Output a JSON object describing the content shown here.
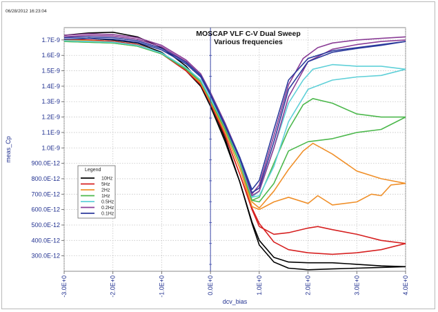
{
  "timestamp": "06/28/2012 16:23:04",
  "chart_data": {
    "type": "line",
    "title": "MOSCAP VLF C-V Dual Sweep",
    "subtitle": "Various frequencies",
    "xlabel": "dcv_bias",
    "ylabel": "meas_Cp",
    "xlim": [
      -3.0,
      4.0
    ],
    "ylim": [
      200,
      1780
    ],
    "x_ticks": [
      -3,
      -2,
      -1,
      0,
      1,
      2,
      3,
      4
    ],
    "x_tick_labels": [
      "-3.0E+0",
      "-2.0E+0",
      "-1.0E+0",
      "0.0E+0",
      "1.0E+0",
      "2.0E+0",
      "3.0E+0",
      "4.0E+0"
    ],
    "y_ticks": [
      300,
      400,
      500,
      600,
      700,
      800,
      900,
      1000,
      1100,
      1200,
      1300,
      1400,
      1500,
      1600,
      1700
    ],
    "y_tick_labels": [
      "300.0E-12",
      "400.0E-12",
      "500.0E-12",
      "600.0E-12",
      "700.0E-12",
      "800.0E-12",
      "900.0E-12",
      "1.0E-9",
      "1.1E-9",
      "1.2E-9",
      "1.3E-9",
      "1.4E-9",
      "1.5E-9",
      "1.6E-9",
      "1.7E-9"
    ],
    "grid": true,
    "legend": {
      "title": "Legend",
      "placement": "left-center"
    },
    "series": [
      {
        "name": "10Hz",
        "color": "#000000",
        "segments": [
          {
            "x": [
              -3.0,
              -2.5,
              -2.0,
              -1.5,
              -1.0,
              -0.5,
              -0.2,
              0.0,
              0.3,
              0.6,
              0.85,
              1.0,
              1.3,
              1.6,
              2.0,
              2.5,
              3.0,
              3.5,
              4.0
            ],
            "y": [
              1730,
              1745,
              1750,
              1720,
              1650,
              1530,
              1420,
              1290,
              1060,
              780,
              510,
              370,
              260,
              220,
              210,
              215,
              220,
              225,
              230
            ]
          },
          {
            "x": [
              -3.0,
              -2.5,
              -2.0,
              -1.5,
              -1.0,
              -0.5,
              -0.2,
              0.0,
              0.3,
              0.6,
              0.85,
              1.0,
              1.3,
              1.6,
              2.0,
              2.5,
              3.0,
              3.5,
              4.0
            ],
            "y": [
              1700,
              1710,
              1700,
              1680,
              1620,
              1500,
              1400,
              1270,
              1040,
              780,
              520,
              400,
              290,
              260,
              255,
              255,
              245,
              235,
              230
            ]
          }
        ]
      },
      {
        "name": "5Hz",
        "color": "#d62020",
        "segments": [
          {
            "x": [
              -3.0,
              -2.5,
              -2.0,
              -1.5,
              -1.0,
              -0.5,
              -0.2,
              0.0,
              0.3,
              0.6,
              0.85,
              1.0,
              1.3,
              1.6,
              2.0,
              2.2,
              2.5,
              3.0,
              3.5,
              4.0
            ],
            "y": [
              1700,
              1700,
              1690,
              1670,
              1610,
              1500,
              1410,
              1290,
              1080,
              830,
              600,
              490,
              440,
              450,
              480,
              490,
              470,
              440,
              400,
              380
            ]
          },
          {
            "x": [
              -3.0,
              -2.5,
              -2.0,
              -1.5,
              -1.0,
              -0.5,
              -0.2,
              0.0,
              0.3,
              0.6,
              0.85,
              1.0,
              1.3,
              1.6,
              2.0,
              2.5,
              3.0,
              3.5,
              4.0
            ],
            "y": [
              1700,
              1700,
              1690,
              1670,
              1610,
              1500,
              1410,
              1290,
              1080,
              830,
              610,
              510,
              390,
              340,
              320,
              310,
              320,
              340,
              380
            ]
          }
        ]
      },
      {
        "name": "2Hz",
        "color": "#f0902a",
        "segments": [
          {
            "x": [
              -3.0,
              -2.5,
              -2.0,
              -1.5,
              -1.0,
              -0.5,
              -0.2,
              0.0,
              0.3,
              0.6,
              0.85,
              1.0,
              1.3,
              1.6,
              1.9,
              2.1,
              2.5,
              3.0,
              3.5,
              4.0
            ],
            "y": [
              1700,
              1695,
              1685,
              1665,
              1610,
              1510,
              1420,
              1300,
              1100,
              870,
              650,
              610,
              720,
              860,
              980,
              1030,
              960,
              850,
              800,
              770
            ]
          },
          {
            "x": [
              -3.0,
              -2.5,
              -2.0,
              -1.5,
              -1.0,
              -0.5,
              -0.2,
              0.0,
              0.3,
              0.6,
              0.85,
              1.0,
              1.3,
              1.6,
              2.0,
              2.2,
              2.5,
              3.0,
              3.3,
              3.5,
              3.7,
              4.0
            ],
            "y": [
              1700,
              1695,
              1685,
              1665,
              1610,
              1510,
              1420,
              1300,
              1100,
              870,
              620,
              600,
              650,
              680,
              640,
              690,
              630,
              650,
              700,
              690,
              760,
              770
            ]
          }
        ]
      },
      {
        "name": "1Hz",
        "color": "#4cb84c",
        "segments": [
          {
            "x": [
              -3.0,
              -2.5,
              -2.0,
              -1.5,
              -1.0,
              -0.5,
              -0.2,
              0.0,
              0.3,
              0.6,
              0.85,
              1.0,
              1.3,
              1.6,
              1.9,
              2.1,
              2.5,
              3.0,
              3.5,
              4.0
            ],
            "y": [
              1690,
              1685,
              1680,
              1660,
              1610,
              1510,
              1430,
              1310,
              1120,
              900,
              660,
              680,
              900,
              1120,
              1280,
              1320,
              1290,
              1220,
              1200,
              1200
            ]
          },
          {
            "x": [
              -3.0,
              -2.5,
              -2.0,
              -1.5,
              -1.0,
              -0.5,
              -0.2,
              0.0,
              0.3,
              0.6,
              0.85,
              1.0,
              1.3,
              1.6,
              2.0,
              2.5,
              3.0,
              3.5,
              4.0
            ],
            "y": [
              1690,
              1685,
              1680,
              1660,
              1610,
              1510,
              1430,
              1310,
              1120,
              900,
              660,
              650,
              770,
              980,
              1040,
              1060,
              1100,
              1120,
              1200
            ]
          }
        ]
      },
      {
        "name": "0.5Hz",
        "color": "#5fd0d8",
        "segments": [
          {
            "x": [
              -3.0,
              -2.5,
              -2.0,
              -1.5,
              -1.0,
              -0.5,
              -0.2,
              0.0,
              0.3,
              0.6,
              0.85,
              1.0,
              1.3,
              1.6,
              1.9,
              2.1,
              2.5,
              3.0,
              3.5,
              4.0
            ],
            "y": [
              1695,
              1690,
              1685,
              1665,
              1615,
              1520,
              1440,
              1320,
              1140,
              920,
              680,
              720,
              1000,
              1290,
              1440,
              1510,
              1540,
              1530,
              1530,
              1510
            ]
          },
          {
            "x": [
              -3.0,
              -2.5,
              -2.0,
              -1.5,
              -1.0,
              -0.5,
              -0.2,
              0.0,
              0.3,
              0.6,
              0.85,
              1.0,
              1.3,
              1.6,
              2.0,
              2.5,
              3.0,
              3.5,
              4.0
            ],
            "y": [
              1695,
              1690,
              1685,
              1665,
              1615,
              1520,
              1440,
              1320,
              1140,
              920,
              680,
              690,
              880,
              1170,
              1380,
              1440,
              1460,
              1470,
              1510
            ]
          }
        ]
      },
      {
        "name": "0.2Hz",
        "color": "#8a3d96",
        "segments": [
          {
            "x": [
              -3.0,
              -2.5,
              -2.0,
              -1.5,
              -1.0,
              -0.5,
              -0.2,
              0.0,
              0.3,
              0.6,
              0.85,
              1.0,
              1.3,
              1.6,
              1.9,
              2.2,
              2.5,
              3.0,
              3.5,
              4.0
            ],
            "y": [
              1730,
              1740,
              1735,
              1715,
              1665,
              1570,
              1480,
              1360,
              1160,
              940,
              700,
              760,
              1080,
              1410,
              1580,
              1650,
              1680,
              1700,
              1710,
              1720
            ]
          },
          {
            "x": [
              -3.0,
              -2.5,
              -2.0,
              -1.5,
              -1.0,
              -0.5,
              -0.2,
              0.0,
              0.3,
              0.6,
              0.85,
              1.0,
              1.3,
              1.6,
              2.0,
              2.5,
              3.0,
              3.5,
              4.0
            ],
            "y": [
              1720,
              1730,
              1725,
              1705,
              1655,
              1560,
              1470,
              1350,
              1150,
              930,
              690,
              720,
              1000,
              1330,
              1560,
              1640,
              1670,
              1690,
              1700
            ]
          }
        ]
      },
      {
        "name": "0.1Hz",
        "color": "#2b3a9c",
        "segments": [
          {
            "x": [
              -3.0,
              -2.5,
              -2.0,
              -1.5,
              -1.0,
              -0.5,
              -0.2,
              0.0,
              0.3,
              0.6,
              0.85,
              1.0,
              1.3,
              1.6,
              2.0,
              2.5,
              3.0,
              3.5,
              4.0
            ],
            "y": [
              1715,
              1720,
              1715,
              1695,
              1645,
              1555,
              1470,
              1350,
              1150,
              940,
              730,
              790,
              1120,
              1440,
              1580,
              1630,
              1650,
              1670,
              1690
            ]
          },
          {
            "x": [
              -3.0,
              -2.5,
              -2.0,
              -1.5,
              -1.0,
              -0.5,
              -0.2,
              0.0,
              0.3,
              0.6,
              0.85,
              1.0,
              1.3,
              1.6,
              2.0,
              2.5,
              3.0,
              3.5,
              4.0
            ],
            "y": [
              1705,
              1710,
              1705,
              1685,
              1635,
              1545,
              1460,
              1340,
              1140,
              930,
              710,
              740,
              1040,
              1380,
              1560,
              1620,
              1645,
              1665,
              1690
            ]
          }
        ]
      }
    ]
  }
}
